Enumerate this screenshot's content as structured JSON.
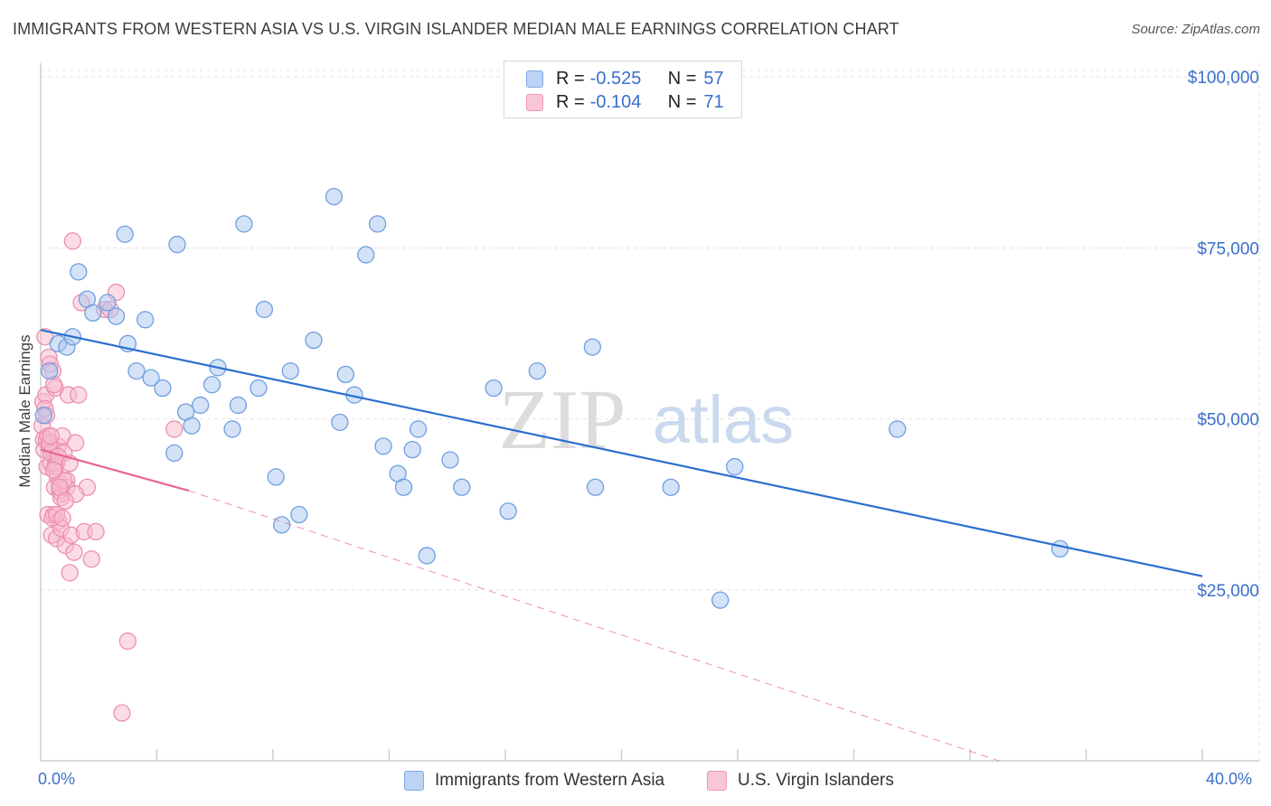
{
  "title": "IMMIGRANTS FROM WESTERN ASIA VS U.S. VIRGIN ISLANDER MEDIAN MALE EARNINGS CORRELATION CHART",
  "source": "Source: ZipAtlas.com",
  "watermark": {
    "zip": "ZIP",
    "atlas": "atlas"
  },
  "legend": {
    "series1": {
      "r_label": "R =",
      "r_value": "-0.525",
      "n_label": "N =",
      "n_value": "57"
    },
    "series2": {
      "r_label": "R =",
      "r_value": "-0.104",
      "n_label": "N =",
      "n_value": "71"
    }
  },
  "bottom_legend": {
    "series1": "Immigrants from Western Asia",
    "series2": "U.S. Virgin Islanders"
  },
  "colors": {
    "blue_fill": "#a9c6f0",
    "blue_stroke": "#6f9fe0",
    "blue_line": "#2b6fd0",
    "pink_fill": "#f7b9cb",
    "pink_stroke": "#ec90ae",
    "pink_line": "#e8648e",
    "axis_label": "#3a6fcc",
    "grid": "#e2e2e2"
  },
  "chart_data": {
    "type": "scatter",
    "title": "IMMIGRANTS FROM WESTERN ASIA VS U.S. VIRGIN ISLANDER MEDIAN MALE EARNINGS CORRELATION CHART",
    "xlabel": "",
    "ylabel": "Median Male Earnings",
    "xlim": [
      0,
      40
    ],
    "ylim": [
      0,
      102000
    ],
    "x_tick_labels": [
      "0.0%",
      "40.0%"
    ],
    "y_ticks": [
      25000,
      50000,
      75000,
      100000
    ],
    "y_tick_labels": [
      "$25,000",
      "$50,000",
      "$75,000",
      "$100,000"
    ],
    "grid": true,
    "series": [
      {
        "name": "Immigrants from Western Asia",
        "x": [
          0.1,
          0.3,
          0.6,
          0.9,
          1.1,
          1.3,
          1.6,
          1.8,
          2.3,
          2.6,
          2.9,
          3.0,
          3.3,
          3.6,
          3.8,
          4.2,
          4.6,
          4.7,
          5.0,
          5.2,
          5.5,
          5.9,
          6.1,
          6.6,
          6.8,
          7.0,
          7.5,
          7.7,
          8.1,
          8.3,
          8.6,
          8.9,
          9.4,
          10.1,
          10.3,
          10.5,
          10.8,
          11.2,
          11.6,
          11.8,
          12.3,
          12.5,
          12.8,
          13.0,
          13.3,
          14.1,
          14.5,
          15.6,
          16.1,
          17.1,
          19.0,
          19.1,
          21.7,
          23.4,
          23.9,
          29.5,
          35.1
        ],
        "y": [
          50500,
          57000,
          61000,
          60500,
          62000,
          71500,
          67500,
          65500,
          67000,
          65000,
          77000,
          61000,
          57000,
          64500,
          56000,
          54500,
          45000,
          75500,
          51000,
          49000,
          52000,
          55000,
          57500,
          48500,
          52000,
          78500,
          54500,
          66000,
          41500,
          34500,
          57000,
          36000,
          61500,
          82500,
          49500,
          56500,
          53500,
          74000,
          78500,
          46000,
          42000,
          40000,
          45500,
          48500,
          30000,
          44000,
          40000,
          54500,
          36500,
          57000,
          60500,
          40000,
          40000,
          23500,
          43000,
          48500,
          31000
        ]
      },
      {
        "name": "U.S. Virgin Islanders",
        "x": [
          0.05,
          0.08,
          0.1,
          0.12,
          0.15,
          0.18,
          0.2,
          0.22,
          0.25,
          0.28,
          0.3,
          0.32,
          0.35,
          0.38,
          0.4,
          0.42,
          0.45,
          0.48,
          0.5,
          0.52,
          0.55,
          0.58,
          0.6,
          0.62,
          0.65,
          0.7,
          0.72,
          0.75,
          0.8,
          0.85,
          0.9,
          0.95,
          1.0,
          1.05,
          1.1,
          1.15,
          1.2,
          1.3,
          1.4,
          1.5,
          1.6,
          1.75,
          1.9,
          2.2,
          2.4,
          2.6,
          2.8,
          3.0,
          4.6,
          0.15,
          0.25,
          0.35,
          0.45,
          0.55,
          0.65,
          0.3,
          0.5,
          0.7,
          0.9,
          0.4,
          0.6,
          0.2,
          0.8,
          1.0,
          1.2,
          0.35,
          0.55,
          0.75,
          0.45,
          0.65,
          0.85
        ],
        "y": [
          49000,
          52500,
          47000,
          45500,
          62000,
          53500,
          47000,
          43000,
          36000,
          59000,
          46000,
          58000,
          43500,
          33000,
          45500,
          57000,
          36000,
          40000,
          54500,
          43500,
          32500,
          41500,
          46000,
          35000,
          40500,
          34000,
          39000,
          47500,
          45000,
          31500,
          41000,
          53500,
          27500,
          33000,
          76000,
          30500,
          46500,
          53500,
          67000,
          33500,
          40000,
          29500,
          33500,
          66000,
          66000,
          68500,
          7000,
          17500,
          48500,
          51500,
          47500,
          45000,
          55000,
          43500,
          39500,
          46500,
          43000,
          38500,
          40000,
          35500,
          44500,
          50500,
          41000,
          43500,
          39000,
          47500,
          36000,
          35500,
          42500,
          40000,
          38000
        ]
      }
    ],
    "trend_lines": [
      {
        "series": "Immigrants from Western Asia",
        "x_start": 0,
        "y_start": 63000,
        "x_end": 40,
        "y_end": 27000,
        "style": "solid"
      },
      {
        "series": "U.S. Virgin Islanders",
        "x_start": 0,
        "y_start": 45500,
        "x_end": 5.1,
        "y_end": 39500,
        "style": "solid"
      },
      {
        "series": "U.S. Virgin Islanders",
        "x_start": 5.1,
        "y_start": 39500,
        "x_end": 33,
        "y_end": 0,
        "style": "dashed"
      }
    ]
  }
}
